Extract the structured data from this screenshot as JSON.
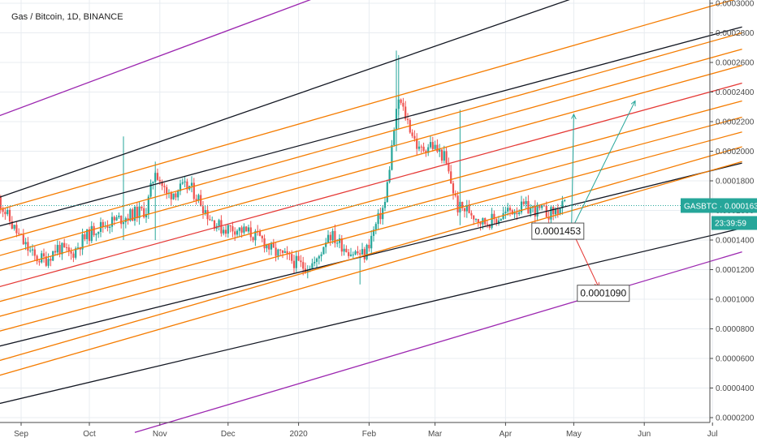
{
  "chart_data": {
    "type": "candlestick",
    "title": "Gas / Bitcoin, 1D, BINANCE",
    "symbol": "GASBTC",
    "last_price": "0.0001633",
    "countdown": "23:39:59",
    "ylim": [
      1e-05,
      0.0003
    ],
    "y_ticks": [
      "0.0003000",
      "0.0002800",
      "0.0002600",
      "0.0002400",
      "0.0002200",
      "0.0002000",
      "0.0001800",
      "0.0001600",
      "0.0001400",
      "0.0001200",
      "0.0001000",
      "0.0000800",
      "0.0000600",
      "0.0000400",
      "0.0000200"
    ],
    "x_ticks": [
      "Sep",
      "Oct",
      "Nov",
      "Dec",
      "2020",
      "Feb",
      "Mar",
      "Apr",
      "May",
      "Jun",
      "Jul"
    ],
    "price_path": [
      [
        "2019-08-22",
        0.000168
      ],
      [
        "2019-08-28",
        0.00015
      ],
      [
        "2019-09-02",
        0.000138
      ],
      [
        "2019-09-07",
        0.000128
      ],
      [
        "2019-09-12",
        0.000127
      ],
      [
        "2019-09-17",
        0.000135
      ],
      [
        "2019-09-23",
        0.00013
      ],
      [
        "2019-09-28",
        0.00014
      ],
      [
        "2019-10-04",
        0.000148
      ],
      [
        "2019-10-10",
        0.000152
      ],
      [
        "2019-10-16",
        0.000155
      ],
      [
        "2019-10-21",
        0.000158
      ],
      [
        "2019-10-26",
        0.00016
      ],
      [
        "2019-10-30",
        0.000188
      ],
      [
        "2019-11-04",
        0.00017
      ],
      [
        "2019-11-09",
        0.000174
      ],
      [
        "2019-11-14",
        0.000176
      ],
      [
        "2019-11-18",
        0.000168
      ],
      [
        "2019-11-23",
        0.000155
      ],
      [
        "2019-11-28",
        0.000148
      ],
      [
        "2019-12-04",
        0.000148
      ],
      [
        "2019-12-10",
        0.000145
      ],
      [
        "2019-12-16",
        0.00014
      ],
      [
        "2019-12-21",
        0.000132
      ],
      [
        "2019-12-27",
        0.000128
      ],
      [
        "2020-01-03",
        0.000122
      ],
      [
        "2020-01-09",
        0.000125
      ],
      [
        "2020-01-14",
        0.000145
      ],
      [
        "2020-01-19",
        0.000138
      ],
      [
        "2020-01-24",
        0.000132
      ],
      [
        "2020-01-30",
        0.00013
      ],
      [
        "2020-02-04",
        0.00015
      ],
      [
        "2020-02-08",
        0.000165
      ],
      [
        "2020-02-12",
        0.000215
      ],
      [
        "2020-02-14",
        0.000235
      ],
      [
        "2020-02-18",
        0.00022
      ],
      [
        "2020-02-23",
        0.0002
      ],
      [
        "2020-02-28",
        0.000205
      ],
      [
        "2020-03-05",
        0.000196
      ],
      [
        "2020-03-11",
        0.000162
      ],
      [
        "2020-03-16",
        0.00016
      ],
      [
        "2020-03-22",
        0.000152
      ],
      [
        "2020-03-28",
        0.000154
      ],
      [
        "2020-04-03",
        0.00016
      ],
      [
        "2020-04-09",
        0.000162
      ],
      [
        "2020-04-15",
        0.00016
      ],
      [
        "2020-04-21",
        0.000158
      ],
      [
        "2020-04-27",
        0.000163
      ]
    ],
    "wicks": [
      [
        "2019-10-16",
        0.00021,
        0.00014
      ],
      [
        "2019-10-30",
        0.000193,
        0.00014
      ],
      [
        "2020-01-28",
        0.00011,
        0.000128
      ],
      [
        "2020-02-13",
        0.000268,
        0.0002
      ],
      [
        "2020-02-14",
        0.000265,
        0.000215
      ],
      [
        "2020-03-12",
        0.000228,
        0.00015
      ]
    ],
    "channel_lines": [
      {
        "color": "purple",
        "x1": "2019-08-19",
        "y1": 0.000222,
        "x2": "2020-03-03",
        "y2": 0.000335
      },
      {
        "color": "purple",
        "x1": "2019-10-21",
        "y1": 1e-05,
        "x2": "2020-07-14",
        "y2": 0.000132
      },
      {
        "color": "black",
        "x1": "2019-08-19",
        "y1": 0.000167,
        "x2": "2020-05-02",
        "y2": 0.000304
      },
      {
        "color": "black",
        "x1": "2019-08-19",
        "y1": 0.000148,
        "x2": "2020-07-14",
        "y2": 0.000284
      },
      {
        "color": "black",
        "x1": "2019-08-19",
        "y1": 6.7e-05,
        "x2": "2020-07-14",
        "y2": 0.000192
      },
      {
        "color": "black",
        "x1": "2019-08-21",
        "y1": 2.9e-05,
        "x2": "2020-07-14",
        "y2": 0.000148
      },
      {
        "color": "red",
        "x1": "2019-08-19",
        "y1": 0.000107,
        "x2": "2020-07-14",
        "y2": 0.000246
      },
      {
        "color": "orange",
        "x1": "2019-08-19",
        "y1": 0.000159,
        "x2": "2020-07-14",
        "y2": 0.000304
      },
      {
        "color": "orange",
        "x1": "2019-08-19",
        "y1": 0.000138,
        "x2": "2020-07-14",
        "y2": 0.00028
      },
      {
        "color": "orange",
        "x1": "2019-08-19",
        "y1": 0.000128,
        "x2": "2020-07-14",
        "y2": 0.000269
      },
      {
        "color": "orange",
        "x1": "2019-08-19",
        "y1": 0.000118,
        "x2": "2020-07-14",
        "y2": 0.000258
      },
      {
        "color": "orange",
        "x1": "2019-08-19",
        "y1": 9.7e-05,
        "x2": "2020-07-14",
        "y2": 0.000234
      },
      {
        "color": "orange",
        "x1": "2019-08-19",
        "y1": 8.7e-05,
        "x2": "2020-07-14",
        "y2": 0.000223
      },
      {
        "color": "orange",
        "x1": "2019-08-19",
        "y1": 7.7e-05,
        "x2": "2020-07-14",
        "y2": 0.000213
      },
      {
        "color": "orange",
        "x1": "2019-08-19",
        "y1": 5.7e-05,
        "x2": "2020-07-14",
        "y2": 0.000203
      },
      {
        "color": "orange",
        "x1": "2019-08-19",
        "y1": 4.7e-05,
        "x2": "2020-07-14",
        "y2": 0.000193
      }
    ],
    "channel_bounds": [
      {
        "color": "red",
        "x1": "2019-08-19",
        "y1": 0.0001,
        "x2": "2019-08-22",
        "y2": 5e-05
      },
      {
        "color": "red",
        "x1": "2019-08-19",
        "y1": 0.000183,
        "x2": "2019-08-19",
        "y2": 0.0001
      }
    ],
    "projections": [
      {
        "color": "green",
        "x1": "2020-04-30",
        "y1": 0.000147,
        "x2": "2020-05-01",
        "y2": 0.000225
      },
      {
        "color": "teal",
        "x1": "2020-04-30",
        "y1": 0.000147,
        "x2": "2020-05-28",
        "y2": 0.000234
      },
      {
        "color": "red",
        "x1": "2020-04-30",
        "y1": 0.000147,
        "x2": "2020-05-12",
        "y2": 0.000108
      }
    ],
    "annotations": [
      {
        "label": "0.0001453",
        "date": "2020-04-24",
        "value": 0.000146
      },
      {
        "label": "0.0001090",
        "date": "2020-05-14",
        "value": 0.000104
      }
    ],
    "colors": {
      "purple": "#9c27b0",
      "black": "#131722",
      "red": "#e53935",
      "orange": "#f57c00",
      "up": "#26a69a",
      "down": "#ef5350",
      "teal": "#26a69a",
      "green": "#26a69a",
      "price_line": "#26a69a",
      "countdown_bg": "#26a69a",
      "grid": "#e8ecf1",
      "axis": "#4a4a4a"
    }
  }
}
